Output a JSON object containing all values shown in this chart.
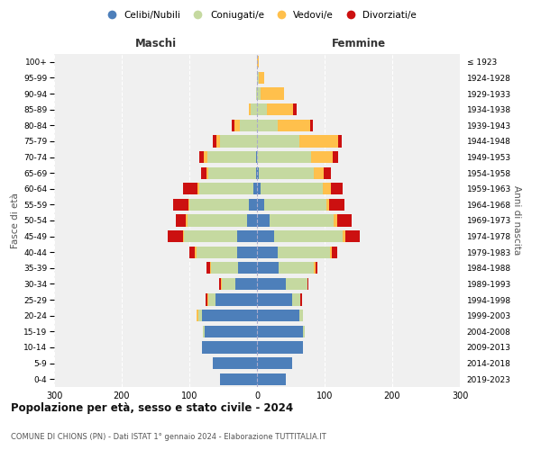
{
  "age_groups": [
    "0-4",
    "5-9",
    "10-14",
    "15-19",
    "20-24",
    "25-29",
    "30-34",
    "35-39",
    "40-44",
    "45-49",
    "50-54",
    "55-59",
    "60-64",
    "65-69",
    "70-74",
    "75-79",
    "80-84",
    "85-89",
    "90-94",
    "95-99",
    "100+"
  ],
  "birth_years": [
    "2019-2023",
    "2014-2018",
    "2009-2013",
    "2004-2008",
    "1999-2003",
    "1994-1998",
    "1989-1993",
    "1984-1988",
    "1979-1983",
    "1974-1978",
    "1969-1973",
    "1964-1968",
    "1959-1963",
    "1954-1958",
    "1949-1953",
    "1944-1948",
    "1939-1943",
    "1934-1938",
    "1929-1933",
    "1924-1928",
    "≤ 1923"
  ],
  "colors": {
    "celibi": "#4d7fba",
    "coniugati": "#c5d9a0",
    "vedovi": "#ffc04c",
    "divorziati": "#cc1010"
  },
  "maschi": {
    "celibi": [
      55,
      65,
      82,
      78,
      82,
      62,
      32,
      28,
      30,
      30,
      15,
      12,
      5,
      2,
      2,
      0,
      0,
      0,
      0,
      0,
      0
    ],
    "coniugati": [
      0,
      0,
      0,
      2,
      5,
      10,
      20,
      40,
      60,
      78,
      88,
      88,
      80,
      70,
      72,
      55,
      25,
      10,
      2,
      0,
      0
    ],
    "vedovi": [
      0,
      0,
      0,
      0,
      2,
      2,
      2,
      2,
      2,
      2,
      2,
      2,
      3,
      3,
      5,
      5,
      8,
      2,
      0,
      0,
      0
    ],
    "divorziati": [
      0,
      0,
      0,
      0,
      0,
      2,
      2,
      5,
      8,
      22,
      15,
      22,
      22,
      8,
      6,
      5,
      4,
      0,
      0,
      0,
      0
    ]
  },
  "femmine": {
    "celibi": [
      43,
      52,
      68,
      68,
      62,
      52,
      42,
      32,
      30,
      25,
      18,
      10,
      5,
      2,
      0,
      0,
      0,
      0,
      0,
      0,
      0
    ],
    "coniugati": [
      0,
      0,
      0,
      2,
      6,
      12,
      32,
      52,
      78,
      102,
      95,
      92,
      92,
      82,
      80,
      62,
      30,
      15,
      5,
      2,
      0
    ],
    "vedovi": [
      0,
      0,
      0,
      0,
      0,
      0,
      0,
      2,
      2,
      3,
      5,
      5,
      12,
      15,
      32,
      58,
      48,
      38,
      35,
      8,
      2
    ],
    "divorziati": [
      0,
      0,
      0,
      0,
      0,
      2,
      2,
      3,
      8,
      22,
      22,
      22,
      18,
      10,
      8,
      5,
      5,
      5,
      0,
      0,
      0
    ]
  },
  "title": "Popolazione per età, sesso e stato civile - 2024",
  "subtitle": "COMUNE DI CHIONS (PN) - Dati ISTAT 1° gennaio 2024 - Elaborazione TUTTITALIA.IT",
  "xlabel_left": "Maschi",
  "xlabel_right": "Femmine",
  "ylabel_left": "Fasce di età",
  "ylabel_right": "Anni di nascita",
  "xlim": 300,
  "legend_labels": [
    "Celibi/Nubili",
    "Coniugati/e",
    "Vedovi/e",
    "Divorziati/e"
  ],
  "bg_color": "#ffffff",
  "plot_bg": "#f0f0f0"
}
